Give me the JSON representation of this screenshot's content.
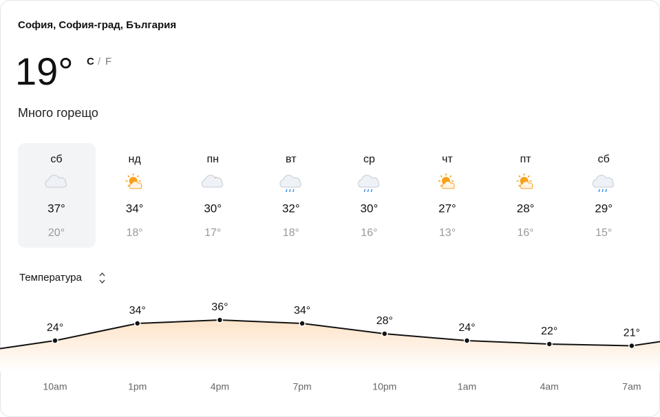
{
  "location": "София, София-град, България",
  "current": {
    "temperature": "19°",
    "unit_c": "C",
    "unit_separator": "/",
    "unit_f": "F",
    "condition": "Много горещо"
  },
  "forecast": [
    {
      "day": "сб",
      "high": "37°",
      "low": "20°"
    },
    {
      "day": "нд",
      "high": "34°",
      "low": "18°"
    },
    {
      "day": "пн",
      "high": "30°",
      "low": "17°"
    },
    {
      "day": "вт",
      "high": "32°",
      "low": "18°"
    },
    {
      "day": "ср",
      "high": "30°",
      "low": "16°"
    },
    {
      "day": "чт",
      "high": "27°",
      "low": "13°"
    },
    {
      "day": "пт",
      "high": "28°",
      "low": "16°"
    },
    {
      "day": "сб",
      "high": "29°",
      "low": "15°"
    }
  ],
  "chart_data": {
    "type": "line",
    "title": "Температура",
    "categories": [
      "10am",
      "1pm",
      "4pm",
      "7pm",
      "10pm",
      "1am",
      "4am",
      "7am"
    ],
    "values": [
      24,
      34,
      36,
      34,
      28,
      24,
      22,
      21
    ],
    "value_labels": [
      "24°",
      "34°",
      "36°",
      "34°",
      "28°",
      "24°",
      "22°",
      "21°"
    ],
    "color": "#111111",
    "ylim": [
      0,
      40
    ]
  }
}
